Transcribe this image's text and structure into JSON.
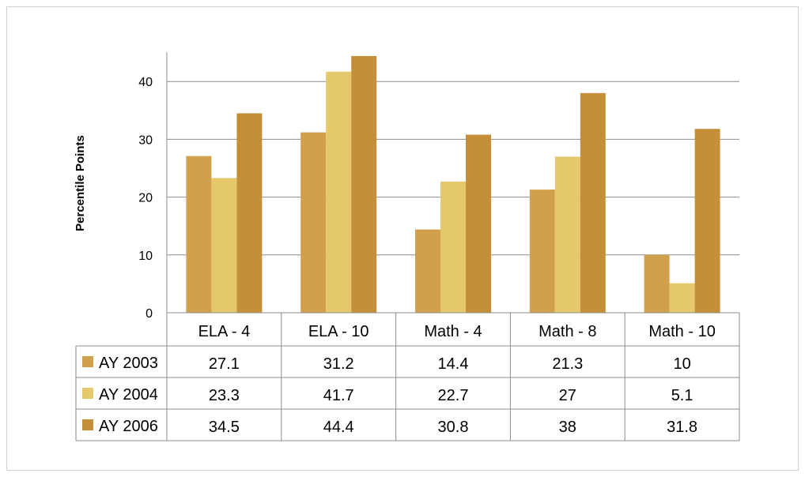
{
  "colors": {
    "series_0": "#D0A04C",
    "series_1": "#E6C86C",
    "series_2": "#C48F38",
    "grid": "#8c8c8c",
    "table_border": "#8c8c8c"
  },
  "chart_data": {
    "type": "bar",
    "categories": [
      "ELA - 4",
      "ELA - 10",
      "Math - 4",
      "Math - 8",
      "Math - 10"
    ],
    "series": [
      {
        "name": "AY 2003",
        "values": [
          27.1,
          31.2,
          14.4,
          21.3,
          10
        ]
      },
      {
        "name": "AY 2004",
        "values": [
          23.3,
          41.7,
          22.7,
          27,
          5.1
        ]
      },
      {
        "name": "AY 2006",
        "values": [
          34.5,
          44.4,
          30.8,
          38,
          31.8
        ]
      }
    ],
    "ylabel": "Percentile Points",
    "xlabel": "",
    "ylim": [
      0,
      40
    ],
    "yticks": [
      0,
      10,
      20,
      30,
      40
    ],
    "grid": true,
    "legend": "data-table-below",
    "table_values": [
      [
        "27.1",
        "31.2",
        "14.4",
        "21.3",
        "10"
      ],
      [
        "23.3",
        "41.7",
        "22.7",
        "27",
        "5.1"
      ],
      [
        "34.5",
        "44.4",
        "30.8",
        "38",
        "31.8"
      ]
    ]
  }
}
